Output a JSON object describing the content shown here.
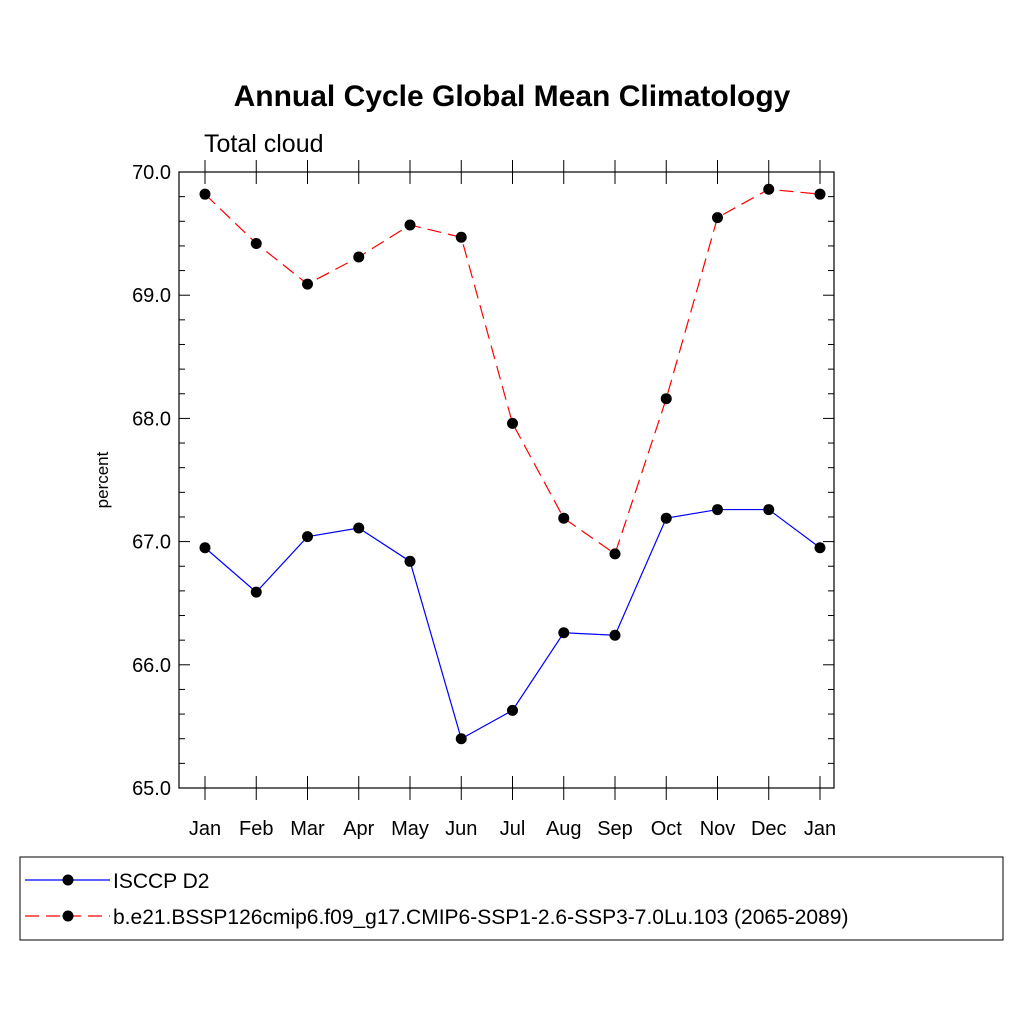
{
  "chart_data": {
    "type": "line",
    "title": "Annual Cycle Global Mean Climatology",
    "subtitle": "Total cloud",
    "xlabel": "",
    "ylabel": "percent",
    "categories": [
      "Jan",
      "Feb",
      "Mar",
      "Apr",
      "May",
      "Jun",
      "Jul",
      "Aug",
      "Sep",
      "Oct",
      "Nov",
      "Dec",
      "Jan"
    ],
    "ylim": [
      65.0,
      70.0
    ],
    "yticks": [
      "65.0",
      "66.0",
      "67.0",
      "68.0",
      "69.0",
      "70.0"
    ],
    "grid": false,
    "legend_position": "bottom",
    "series": [
      {
        "name": "ISCCP D2",
        "color": "#0000ff",
        "dash": "solid",
        "marker": "filled-circle",
        "values": [
          66.95,
          66.59,
          67.04,
          67.11,
          66.84,
          65.4,
          65.63,
          66.26,
          66.24,
          67.19,
          67.26,
          67.26,
          66.95
        ]
      },
      {
        "name": "b.e21.BSSP126cmip6.f09_g17.CMIP6-SSP1-2.6-SSP3-7.0Lu.103 (2065-2089)",
        "color": "#ff0000",
        "dash": "dashed",
        "marker": "filled-circle",
        "values": [
          69.82,
          69.42,
          69.09,
          69.31,
          69.57,
          69.47,
          67.96,
          67.19,
          66.9,
          68.16,
          69.63,
          69.86,
          69.82
        ]
      }
    ]
  }
}
